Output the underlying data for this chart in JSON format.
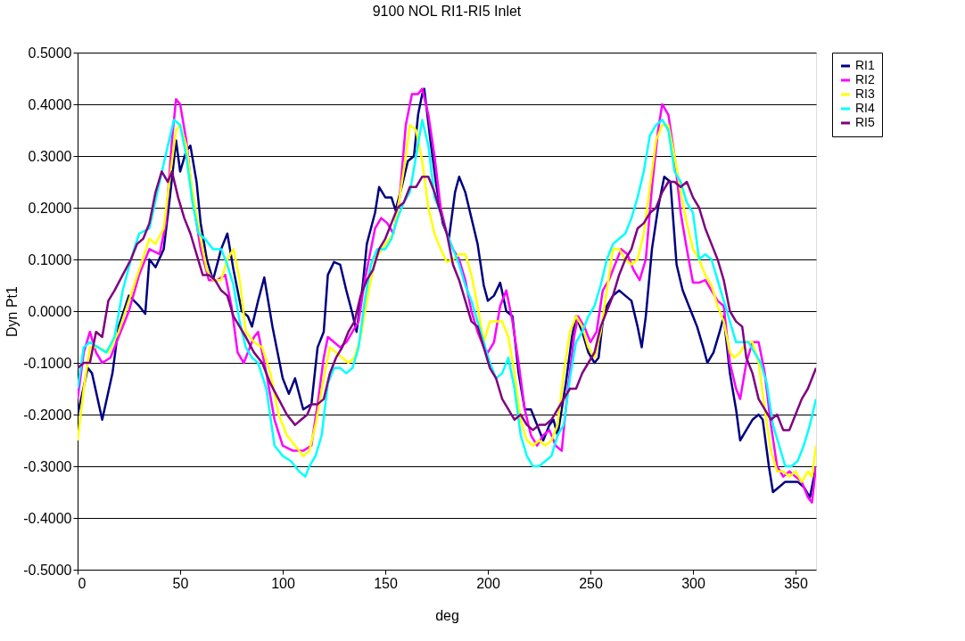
{
  "chart_data": {
    "type": "line",
    "title": "9100 NOL RI1-RI5 Inlet",
    "xlabel": "deg",
    "ylabel": "Dyn Pt1",
    "xlim": [
      0,
      360
    ],
    "xticks": [
      0,
      50,
      100,
      150,
      200,
      250,
      300,
      350
    ],
    "ylim": [
      -0.5,
      0.5
    ],
    "yticks": [
      {
        "value": -0.5,
        "label": "-0.5000"
      },
      {
        "value": -0.4,
        "label": "-0.4000"
      },
      {
        "value": -0.3,
        "label": "-0.3000"
      },
      {
        "value": -0.2,
        "label": "-0.2000"
      },
      {
        "value": -0.1,
        "label": "-0.1000"
      },
      {
        "value": 0,
        "label": "0.0000"
      },
      {
        "value": 0.1,
        "label": "0.1000"
      },
      {
        "value": 0.2,
        "label": "0.2000"
      },
      {
        "value": 0.3,
        "label": "0.3000"
      },
      {
        "value": 0.4,
        "label": "0.4000"
      },
      {
        "value": 0.5,
        "label": "0.5000"
      }
    ],
    "grid": "y",
    "legend": "right",
    "line_style": "solid",
    "series": [
      {
        "name": "RI1",
        "color": "#000080",
        "x": [
          0,
          5,
          7,
          12,
          17,
          20,
          25,
          30,
          33,
          35,
          38,
          42,
          45,
          48,
          50,
          53,
          55,
          58,
          60,
          63,
          66,
          70,
          73,
          76,
          80,
          83,
          85,
          88,
          91,
          95,
          100,
          103,
          106,
          110,
          114,
          117,
          120,
          122,
          125,
          128,
          131,
          134,
          136,
          139,
          141,
          145,
          147,
          150,
          153,
          155,
          158,
          161,
          164,
          166,
          168,
          169,
          172,
          175,
          178,
          181,
          184,
          186,
          189,
          192,
          195,
          198,
          200,
          203,
          206,
          209,
          212,
          215,
          218,
          221,
          224,
          227,
          230,
          232,
          234,
          238,
          241,
          243,
          246,
          249,
          252,
          254,
          256,
          258,
          261,
          264,
          267,
          270,
          273,
          275,
          277,
          280,
          283,
          286,
          289,
          292,
          295,
          298,
          300,
          302,
          305,
          307,
          310,
          313,
          315,
          318,
          321,
          323,
          326,
          329,
          332,
          334,
          337,
          339,
          342,
          345,
          348,
          351,
          354,
          357,
          360
        ],
        "values": [
          -0.2,
          -0.11,
          -0.12,
          -0.21,
          -0.12,
          -0.03,
          0.03,
          0.01,
          -0.005,
          0.1,
          0.085,
          0.12,
          0.22,
          0.33,
          0.27,
          0.31,
          0.32,
          0.25,
          0.17,
          0.1,
          0.06,
          0.12,
          0.15,
          0.08,
          0.0,
          -0.01,
          -0.03,
          0.02,
          0.065,
          -0.03,
          -0.13,
          -0.16,
          -0.13,
          -0.19,
          -0.18,
          -0.07,
          -0.04,
          0.07,
          0.095,
          0.09,
          0.04,
          -0.005,
          -0.04,
          0.05,
          0.13,
          0.19,
          0.24,
          0.22,
          0.22,
          0.195,
          0.24,
          0.29,
          0.3,
          0.38,
          0.42,
          0.43,
          0.33,
          0.24,
          0.17,
          0.14,
          0.23,
          0.26,
          0.23,
          0.18,
          0.13,
          0.05,
          0.02,
          0.03,
          0.055,
          0.0,
          -0.01,
          -0.12,
          -0.19,
          -0.19,
          -0.22,
          -0.25,
          -0.22,
          -0.21,
          -0.24,
          -0.14,
          -0.05,
          -0.01,
          -0.04,
          -0.08,
          -0.1,
          -0.09,
          -0.02,
          0.01,
          0.03,
          0.04,
          0.03,
          0.02,
          -0.03,
          -0.07,
          -0.01,
          0.12,
          0.2,
          0.26,
          0.25,
          0.09,
          0.04,
          0.01,
          -0.01,
          -0.03,
          -0.07,
          -0.1,
          -0.08,
          -0.04,
          -0.01,
          -0.12,
          -0.19,
          -0.25,
          -0.23,
          -0.21,
          -0.2,
          -0.21,
          -0.3,
          -0.35,
          -0.34,
          -0.33,
          -0.33,
          -0.33,
          -0.34,
          -0.36,
          -0.3
        ]
      },
      {
        "name": "RI2",
        "color": "#ff00ff",
        "x": [
          0,
          3,
          6,
          9,
          12,
          16,
          20,
          25,
          30,
          35,
          40,
          43,
          46,
          48,
          50,
          53,
          56,
          60,
          64,
          68,
          72,
          75,
          78,
          81,
          84,
          86,
          88,
          92,
          96,
          100,
          105,
          110,
          114,
          117,
          120,
          122,
          125,
          128,
          131,
          134,
          137,
          140,
          143,
          145,
          148,
          151,
          154,
          157,
          160,
          163,
          166,
          168,
          171,
          174,
          177,
          180,
          183,
          186,
          189,
          192,
          195,
          198,
          200,
          203,
          206,
          209,
          212,
          215,
          218,
          221,
          224,
          227,
          230,
          233,
          236,
          239,
          242,
          244,
          247,
          250,
          253,
          256,
          259,
          262,
          265,
          268,
          271,
          274,
          277,
          280,
          283,
          285,
          288,
          291,
          294,
          297,
          300,
          303,
          306,
          309,
          312,
          315,
          318,
          321,
          323,
          326,
          329,
          332,
          335,
          338,
          341,
          344,
          347,
          350,
          353,
          356,
          358,
          360
        ],
        "values": [
          -0.17,
          -0.08,
          -0.04,
          -0.08,
          -0.1,
          -0.09,
          -0.05,
          0.0,
          0.07,
          0.12,
          0.11,
          0.17,
          0.33,
          0.41,
          0.4,
          0.33,
          0.22,
          0.12,
          0.06,
          0.06,
          0.07,
          0.01,
          -0.08,
          -0.1,
          -0.07,
          -0.05,
          -0.04,
          -0.12,
          -0.21,
          -0.26,
          -0.27,
          -0.27,
          -0.26,
          -0.18,
          -0.09,
          -0.05,
          -0.06,
          -0.07,
          -0.06,
          -0.04,
          -0.02,
          0.06,
          0.12,
          0.16,
          0.18,
          0.17,
          0.15,
          0.22,
          0.36,
          0.42,
          0.42,
          0.43,
          0.38,
          0.3,
          0.2,
          0.15,
          0.12,
          0.1,
          0.06,
          0.0,
          -0.04,
          -0.07,
          -0.08,
          -0.06,
          0.01,
          0.04,
          -0.02,
          -0.1,
          -0.19,
          -0.24,
          -0.26,
          -0.24,
          -0.23,
          -0.26,
          -0.27,
          -0.15,
          -0.05,
          -0.01,
          -0.03,
          -0.06,
          -0.04,
          0.04,
          0.06,
          0.09,
          0.12,
          0.11,
          0.08,
          0.06,
          0.1,
          0.24,
          0.35,
          0.4,
          0.38,
          0.3,
          0.19,
          0.12,
          0.055,
          0.055,
          0.06,
          0.04,
          0.02,
          0.01,
          -0.1,
          -0.15,
          -0.17,
          -0.1,
          -0.06,
          -0.06,
          -0.12,
          -0.22,
          -0.3,
          -0.32,
          -0.31,
          -0.32,
          -0.33,
          -0.36,
          -0.37,
          -0.3
        ]
      },
      {
        "name": "RI3",
        "color": "#ffff00",
        "x": [
          0,
          3,
          6,
          10,
          15,
          20,
          25,
          30,
          35,
          38,
          42,
          45,
          48,
          50,
          53,
          56,
          60,
          63,
          66,
          70,
          73,
          76,
          79,
          82,
          86,
          90,
          94,
          98,
          102,
          106,
          110,
          113,
          116,
          120,
          123,
          126,
          129,
          132,
          135,
          138,
          141,
          145,
          150,
          154,
          157,
          160,
          162,
          165,
          168,
          171,
          174,
          177,
          180,
          183,
          186,
          189,
          192,
          195,
          198,
          201,
          204,
          207,
          210,
          213,
          216,
          219,
          222,
          225,
          228,
          231,
          234,
          237,
          240,
          243,
          246,
          249,
          252,
          255,
          258,
          261,
          264,
          267,
          270,
          273,
          276,
          279,
          282,
          285,
          288,
          291,
          294,
          297,
          300,
          303,
          306,
          309,
          312,
          315,
          318,
          320,
          323,
          326,
          329,
          332,
          335,
          338,
          341,
          344,
          347,
          350,
          353,
          356,
          358,
          360
        ],
        "values": [
          -0.25,
          -0.15,
          -0.07,
          -0.07,
          -0.08,
          -0.04,
          0.02,
          0.08,
          0.14,
          0.13,
          0.16,
          0.26,
          0.35,
          0.36,
          0.32,
          0.23,
          0.14,
          0.08,
          0.06,
          0.06,
          0.1,
          0.12,
          0.06,
          -0.04,
          -0.06,
          -0.07,
          -0.12,
          -0.2,
          -0.24,
          -0.26,
          -0.28,
          -0.27,
          -0.22,
          -0.13,
          -0.07,
          -0.08,
          -0.09,
          -0.1,
          -0.09,
          -0.05,
          0.02,
          0.1,
          0.13,
          0.15,
          0.22,
          0.3,
          0.36,
          0.35,
          0.29,
          0.2,
          0.15,
          0.12,
          0.095,
          0.1,
          0.11,
          0.11,
          0.07,
          0.01,
          -0.06,
          -0.02,
          -0.02,
          -0.02,
          -0.05,
          -0.12,
          -0.21,
          -0.25,
          -0.26,
          -0.25,
          -0.26,
          -0.25,
          -0.22,
          -0.12,
          -0.04,
          -0.01,
          -0.03,
          -0.07,
          -0.09,
          -0.04,
          0.04,
          0.12,
          0.12,
          0.1,
          0.09,
          0.1,
          0.15,
          0.24,
          0.33,
          0.36,
          0.36,
          0.3,
          0.23,
          0.17,
          0.12,
          0.1,
          0.07,
          0.05,
          0.01,
          -0.02,
          -0.08,
          -0.09,
          -0.08,
          -0.06,
          -0.06,
          -0.1,
          -0.19,
          -0.27,
          -0.31,
          -0.31,
          -0.32,
          -0.31,
          -0.33,
          -0.31,
          -0.32,
          -0.26
        ]
      },
      {
        "name": "RI4",
        "color": "#00ffff",
        "x": [
          0,
          3,
          6,
          10,
          14,
          18,
          22,
          26,
          30,
          35,
          40,
          44,
          47,
          50,
          53,
          56,
          59,
          62,
          66,
          70,
          73,
          76,
          79,
          82,
          85,
          88,
          92,
          96,
          100,
          104,
          108,
          111,
          113,
          116,
          119,
          122,
          125,
          128,
          131,
          134,
          137,
          140,
          143,
          146,
          150,
          153,
          156,
          159,
          162,
          165,
          168,
          171,
          174,
          177,
          180,
          183,
          186,
          189,
          192,
          195,
          198,
          201,
          204,
          207,
          210,
          213,
          216,
          219,
          222,
          225,
          228,
          231,
          234,
          237,
          240,
          243,
          246,
          249,
          252,
          255,
          258,
          261,
          264,
          267,
          270,
          273,
          276,
          279,
          282,
          285,
          288,
          291,
          294,
          297,
          300,
          303,
          306,
          309,
          312,
          315,
          318,
          321,
          324,
          327,
          330,
          333,
          336,
          339,
          342,
          345,
          348,
          351,
          354,
          357,
          360
        ],
        "values": [
          -0.15,
          -0.07,
          -0.06,
          -0.07,
          -0.08,
          -0.05,
          0.04,
          0.1,
          0.15,
          0.16,
          0.25,
          0.32,
          0.37,
          0.36,
          0.3,
          0.21,
          0.15,
          0.14,
          0.12,
          0.12,
          0.09,
          0.05,
          -0.02,
          -0.07,
          -0.09,
          -0.1,
          -0.15,
          -0.26,
          -0.28,
          -0.29,
          -0.31,
          -0.32,
          -0.3,
          -0.28,
          -0.24,
          -0.14,
          -0.11,
          -0.11,
          -0.12,
          -0.11,
          -0.07,
          0.02,
          0.09,
          0.12,
          0.12,
          0.14,
          0.18,
          0.21,
          0.23,
          0.3,
          0.37,
          0.32,
          0.22,
          0.19,
          0.15,
          0.12,
          0.09,
          0.05,
          0.02,
          -0.02,
          -0.06,
          -0.1,
          -0.13,
          -0.12,
          -0.09,
          -0.15,
          -0.24,
          -0.28,
          -0.3,
          -0.3,
          -0.29,
          -0.28,
          -0.24,
          -0.22,
          -0.13,
          -0.06,
          -0.04,
          -0.01,
          0.01,
          0.05,
          0.1,
          0.13,
          0.14,
          0.15,
          0.18,
          0.22,
          0.27,
          0.34,
          0.36,
          0.37,
          0.35,
          0.27,
          0.25,
          0.21,
          0.19,
          0.1,
          0.11,
          0.1,
          0.06,
          0.02,
          -0.02,
          -0.06,
          -0.06,
          -0.06,
          -0.08,
          -0.1,
          -0.14,
          -0.22,
          -0.26,
          -0.3,
          -0.3,
          -0.29,
          -0.26,
          -0.22,
          -0.17
        ]
      },
      {
        "name": "RI5",
        "color": "#800080",
        "x": [
          0,
          3,
          6,
          9,
          12,
          15,
          18,
          22,
          26,
          29,
          32,
          35,
          38,
          41,
          44,
          46,
          49,
          52,
          55,
          58,
          61,
          64,
          67,
          70,
          73,
          76,
          79,
          82,
          86,
          90,
          94,
          98,
          102,
          106,
          109,
          112,
          114,
          117,
          120,
          123,
          126,
          129,
          132,
          135,
          138,
          141,
          144,
          147,
          150,
          153,
          156,
          159,
          162,
          165,
          168,
          171,
          174,
          177,
          180,
          183,
          186,
          189,
          192,
          195,
          198,
          201,
          204,
          207,
          210,
          213,
          216,
          219,
          222,
          225,
          228,
          231,
          234,
          237,
          240,
          243,
          246,
          249,
          252,
          255,
          258,
          261,
          264,
          267,
          270,
          273,
          276,
          279,
          282,
          285,
          288,
          291,
          294,
          297,
          300,
          303,
          306,
          309,
          312,
          315,
          318,
          321,
          324,
          326,
          329,
          332,
          335,
          338,
          341,
          344,
          347,
          350,
          353,
          356,
          360
        ],
        "values": [
          -0.11,
          -0.1,
          -0.1,
          -0.04,
          -0.05,
          0.02,
          0.04,
          0.07,
          0.1,
          0.13,
          0.14,
          0.17,
          0.23,
          0.27,
          0.25,
          0.27,
          0.22,
          0.18,
          0.15,
          0.11,
          0.07,
          0.07,
          0.06,
          0.04,
          0.03,
          -0.01,
          -0.03,
          -0.05,
          -0.08,
          -0.1,
          -0.14,
          -0.17,
          -0.2,
          -0.22,
          -0.21,
          -0.2,
          -0.18,
          -0.18,
          -0.17,
          -0.12,
          -0.09,
          -0.07,
          -0.04,
          -0.02,
          0.03,
          0.06,
          0.08,
          0.12,
          0.14,
          0.17,
          0.2,
          0.21,
          0.24,
          0.24,
          0.26,
          0.26,
          0.23,
          0.19,
          0.15,
          0.09,
          0.06,
          0.02,
          -0.02,
          -0.03,
          -0.07,
          -0.11,
          -0.13,
          -0.17,
          -0.19,
          -0.21,
          -0.2,
          -0.22,
          -0.23,
          -0.22,
          -0.22,
          -0.21,
          -0.19,
          -0.17,
          -0.15,
          -0.15,
          -0.12,
          -0.1,
          -0.08,
          -0.03,
          0.0,
          0.03,
          0.07,
          0.1,
          0.12,
          0.16,
          0.17,
          0.19,
          0.2,
          0.23,
          0.25,
          0.25,
          0.24,
          0.25,
          0.22,
          0.2,
          0.16,
          0.13,
          0.1,
          0.06,
          0.0,
          -0.02,
          -0.03,
          -0.09,
          -0.12,
          -0.17,
          -0.19,
          -0.21,
          -0.2,
          -0.23,
          -0.23,
          -0.2,
          -0.17,
          -0.15,
          -0.11
        ]
      }
    ]
  }
}
